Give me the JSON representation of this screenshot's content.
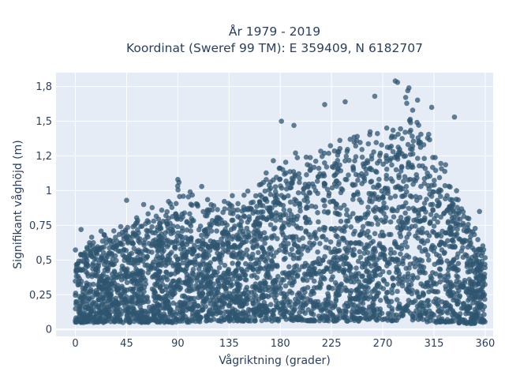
{
  "chart_data": {
    "type": "scatter",
    "title_line1": "År 1979 - 2019",
    "title_line2": "Koordinat (Sweref 99 TM): E 359409, N 6182707",
    "xlabel": "Vågriktning (grader)",
    "ylabel": "Signifikant våghöjd (m)",
    "xlim": [
      -17,
      367
    ],
    "ylim": [
      -0.05,
      1.85
    ],
    "x_ticks": [
      0,
      45,
      90,
      135,
      180,
      225,
      270,
      315,
      360
    ],
    "x_tick_labels": [
      "0",
      "45",
      "90",
      "135",
      "180",
      "225",
      "270",
      "315",
      "360"
    ],
    "y_ticks": [
      0,
      0.25,
      0.5,
      0.75,
      1,
      1.25,
      1.5,
      1.75
    ],
    "y_tick_labels": [
      "0",
      "0,25",
      "0,5",
      "0,75",
      "1",
      "1,2",
      "1,5",
      "1,8"
    ],
    "grid": true,
    "marker_color": "#2f5570",
    "plot_background": "#e5ecf6",
    "envelope": {
      "direction": [
        0,
        20,
        45,
        90,
        135,
        180,
        225,
        270,
        300,
        315,
        330,
        345,
        360
      ],
      "approx_max_height": [
        0.62,
        0.72,
        0.8,
        1.05,
        0.97,
        1.3,
        1.45,
        1.5,
        1.79,
        1.4,
        1.18,
        0.85,
        0.62
      ],
      "approx_min_height": [
        0.05,
        0.05,
        0.05,
        0.05,
        0.06,
        0.06,
        0.06,
        0.06,
        0.06,
        0.05,
        0.05,
        0.04,
        0.05
      ]
    },
    "outliers": [
      {
        "x": 281,
        "y": 1.79
      },
      {
        "x": 283,
        "y": 1.78
      },
      {
        "x": 292,
        "y": 1.72
      },
      {
        "x": 293,
        "y": 1.74
      },
      {
        "x": 313,
        "y": 1.6
      },
      {
        "x": 263,
        "y": 1.68
      },
      {
        "x": 237,
        "y": 1.64
      },
      {
        "x": 219,
        "y": 1.62
      },
      {
        "x": 181,
        "y": 1.5
      },
      {
        "x": 192,
        "y": 1.47
      },
      {
        "x": 333,
        "y": 1.53
      },
      {
        "x": 90,
        "y": 1.08
      },
      {
        "x": 91,
        "y": 1.06
      },
      {
        "x": 111,
        "y": 1.03
      },
      {
        "x": 45,
        "y": 0.93
      },
      {
        "x": 60,
        "y": 0.9
      },
      {
        "x": 5,
        "y": 0.72
      },
      {
        "x": 355,
        "y": 0.85
      }
    ]
  }
}
